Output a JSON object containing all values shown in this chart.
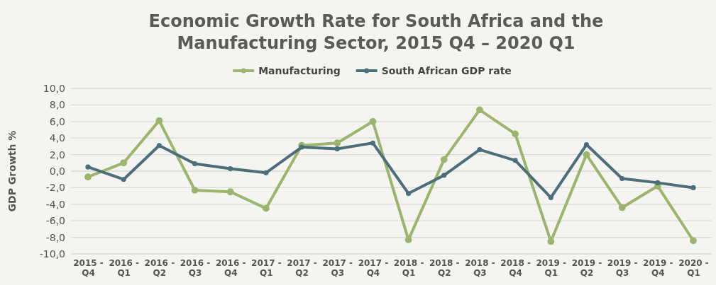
{
  "chart_data": {
    "type": "line",
    "title": "Economic Growth Rate for South Africa and the Manufacturing Sector, 2015 Q4 – 2020 Q1",
    "ylabel": "GDP Growth %",
    "categories": [
      "2015 - Q4",
      "2016 - Q1",
      "2016 - Q2",
      "2016 - Q3",
      "2016 - Q4",
      "2017 - Q1",
      "2017 - Q2",
      "2017 - Q3",
      "2017 - Q4",
      "2018 - Q1",
      "2018 - Q2",
      "2018 - Q3",
      "2018 - Q4",
      "2019 - Q1",
      "2019 - Q2",
      "2019 - Q3",
      "2019 - Q4",
      "2020 - Q1"
    ],
    "series": [
      {
        "name": "Manufacturing",
        "color": "#9bb56e",
        "values": [
          -0.7,
          1.0,
          6.1,
          -2.3,
          -2.5,
          -4.5,
          3.1,
          3.4,
          6.0,
          -8.3,
          1.4,
          7.4,
          4.5,
          -8.5,
          2.0,
          -4.4,
          -1.8,
          -8.4
        ]
      },
      {
        "name": "South African GDP rate",
        "color": "#4a6e7a",
        "values": [
          0.5,
          -1.0,
          3.1,
          0.9,
          0.3,
          -0.2,
          2.9,
          2.7,
          3.4,
          -2.7,
          -0.5,
          2.6,
          1.3,
          -3.2,
          3.2,
          -0.9,
          -1.4,
          -2.0
        ]
      }
    ],
    "ylim": [
      -10,
      10
    ],
    "yticks": [
      {
        "value": -10,
        "label": "-10,0"
      },
      {
        "value": -8,
        "label": "-8,0"
      },
      {
        "value": -6,
        "label": "-6,0"
      },
      {
        "value": -4,
        "label": "-4,0"
      },
      {
        "value": -2,
        "label": "-2,0"
      },
      {
        "value": 0,
        "label": "0,0"
      },
      {
        "value": 2,
        "label": "2,0"
      },
      {
        "value": 4,
        "label": "4,0"
      },
      {
        "value": 6,
        "label": "6,0"
      },
      {
        "value": 8,
        "label": "8,0"
      },
      {
        "value": 10,
        "label": "10,0"
      }
    ],
    "grid": "y",
    "legend": "top",
    "marker": "circle",
    "line_style": "solid"
  }
}
